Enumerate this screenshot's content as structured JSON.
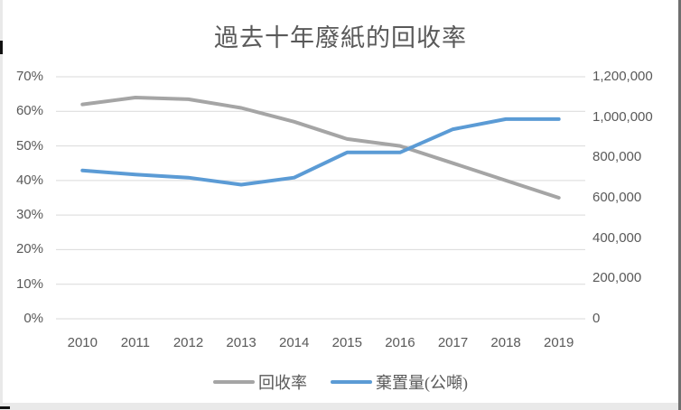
{
  "chart": {
    "title": "過去十年廢紙的回收率",
    "colors": {
      "gridline": "#D9D9D9",
      "axis_line": "#D9D9D9",
      "text": "#595959",
      "series_recovery": "#A5A5A5",
      "series_disposal": "#5B9BD5"
    },
    "legend": [
      {
        "label": "回收率",
        "color": "#A5A5A5"
      },
      {
        "label": "棄置量(公噸)",
        "color": "#5B9BD5"
      }
    ]
  },
  "chart_data": {
    "type": "line",
    "title": "過去十年廢紙的回收率",
    "categories": [
      "2010",
      "2011",
      "2012",
      "2013",
      "2014",
      "2015",
      "2016",
      "2017",
      "2018",
      "2019"
    ],
    "series": [
      {
        "name": "回收率",
        "axis": "left",
        "unit": "%",
        "color": "#A5A5A5",
        "values": [
          62,
          64,
          63.5,
          61,
          57,
          52,
          50,
          45,
          40,
          35
        ]
      },
      {
        "name": "棄置量(公噸)",
        "axis": "right",
        "unit": "公噸",
        "color": "#5B9BD5",
        "values": [
          735000,
          715000,
          700000,
          665000,
          700000,
          825000,
          825000,
          940000,
          990000,
          990000
        ]
      }
    ],
    "left_axis": {
      "min": 0,
      "max": 70,
      "step": 10,
      "tick_labels": [
        "0%",
        "10%",
        "20%",
        "30%",
        "40%",
        "50%",
        "60%",
        "70%"
      ]
    },
    "right_axis": {
      "min": 0,
      "max": 1200000,
      "step": 200000,
      "tick_labels": [
        "0",
        "200,000",
        "400,000",
        "600,000",
        "800,000",
        "1,000,000",
        "1,200,000"
      ]
    },
    "grid": true,
    "legend_position": "bottom"
  }
}
